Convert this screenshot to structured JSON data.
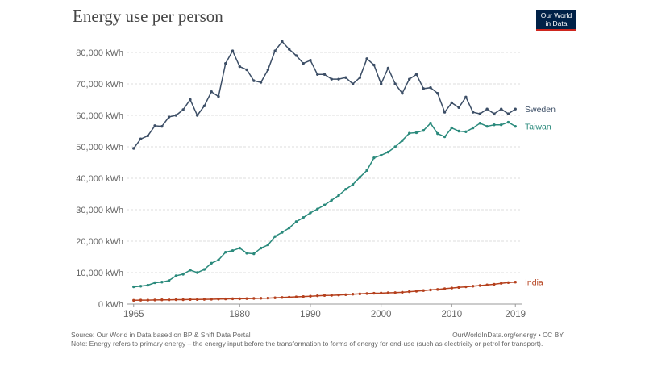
{
  "header": {
    "title": "Energy use per person",
    "logo_line1": "Our World",
    "logo_line2": "in Data"
  },
  "footer": {
    "source": "Source: Our World in Data based on BP & Shift Data Portal",
    "license": "OurWorldInData.org/energy • CC BY",
    "note": "Note: Energy refers to primary energy – the energy input before the transformation to forms of energy for end-use (such as electricity or petrol for transport)."
  },
  "colors": {
    "sweden": "#3c4e66",
    "taiwan": "#2a8a7c",
    "india": "#b5401d",
    "logo_bg": "#002147",
    "logo_accent": "#ce261e"
  },
  "chart_data": {
    "type": "line",
    "title": "Energy use per person",
    "xlabel": "",
    "ylabel": "",
    "xlim": [
      1964,
      2020
    ],
    "ylim": [
      0,
      80000
    ],
    "x_ticks": [
      1965,
      1980,
      1990,
      2000,
      2010,
      2019
    ],
    "y_ticks": [
      0,
      10000,
      20000,
      30000,
      40000,
      50000,
      60000,
      70000,
      80000
    ],
    "y_tick_labels": [
      "0 kWh",
      "10,000 kWh",
      "20,000 kWh",
      "30,000 kWh",
      "40,000 kWh",
      "50,000 kWh",
      "60,000 kWh",
      "70,000 kWh",
      "80,000 kWh"
    ],
    "grid": "horizontal dashed",
    "legend": "labels at line ends",
    "x": [
      1965,
      1966,
      1967,
      1968,
      1969,
      1970,
      1971,
      1972,
      1973,
      1974,
      1975,
      1976,
      1977,
      1978,
      1979,
      1980,
      1981,
      1982,
      1983,
      1984,
      1985,
      1986,
      1987,
      1988,
      1989,
      1990,
      1991,
      1992,
      1993,
      1994,
      1995,
      1996,
      1997,
      1998,
      1999,
      2000,
      2001,
      2002,
      2003,
      2004,
      2005,
      2006,
      2007,
      2008,
      2009,
      2010,
      2011,
      2012,
      2013,
      2014,
      2015,
      2016,
      2017,
      2018,
      2019
    ],
    "series": [
      {
        "name": "Sweden",
        "values": [
          49500,
          52500,
          53500,
          56700,
          56500,
          59500,
          60000,
          61800,
          65000,
          60000,
          63000,
          67500,
          66000,
          76500,
          80500,
          75500,
          74500,
          71000,
          70500,
          74500,
          80500,
          83500,
          81000,
          79000,
          76500,
          77500,
          73000,
          73000,
          71500,
          71500,
          72000,
          70000,
          72000,
          78000,
          76000,
          70000,
          75000,
          70000,
          67000,
          71500,
          73000,
          68500,
          68800,
          67000,
          61000,
          64000,
          62500,
          65800,
          61000,
          60500,
          62000,
          60500,
          62000,
          60500,
          62000
        ]
      },
      {
        "name": "Taiwan",
        "values": [
          5500,
          5700,
          6000,
          6800,
          7000,
          7500,
          9000,
          9500,
          10800,
          10000,
          11000,
          13000,
          14000,
          16500,
          17000,
          17800,
          16200,
          16000,
          17800,
          18800,
          21500,
          22800,
          24200,
          26200,
          27500,
          29000,
          30200,
          31500,
          33000,
          34500,
          36500,
          38000,
          40300,
          42500,
          46500,
          47300,
          48300,
          50000,
          52000,
          54300,
          54500,
          55200,
          57500,
          54200,
          53200,
          56000,
          55000,
          54800,
          56000,
          57500,
          56500,
          57000,
          57000,
          57800,
          56500
        ]
      },
      {
        "name": "India",
        "values": [
          1200,
          1250,
          1250,
          1300,
          1350,
          1350,
          1400,
          1400,
          1450,
          1450,
          1500,
          1550,
          1600,
          1650,
          1700,
          1700,
          1750,
          1800,
          1850,
          1900,
          2000,
          2100,
          2200,
          2300,
          2400,
          2500,
          2650,
          2750,
          2800,
          2900,
          3000,
          3150,
          3250,
          3350,
          3450,
          3500,
          3600,
          3650,
          3750,
          3950,
          4100,
          4300,
          4500,
          4650,
          4900,
          5100,
          5300,
          5500,
          5700,
          5900,
          6100,
          6300,
          6600,
          6850,
          7000
        ]
      }
    ]
  }
}
